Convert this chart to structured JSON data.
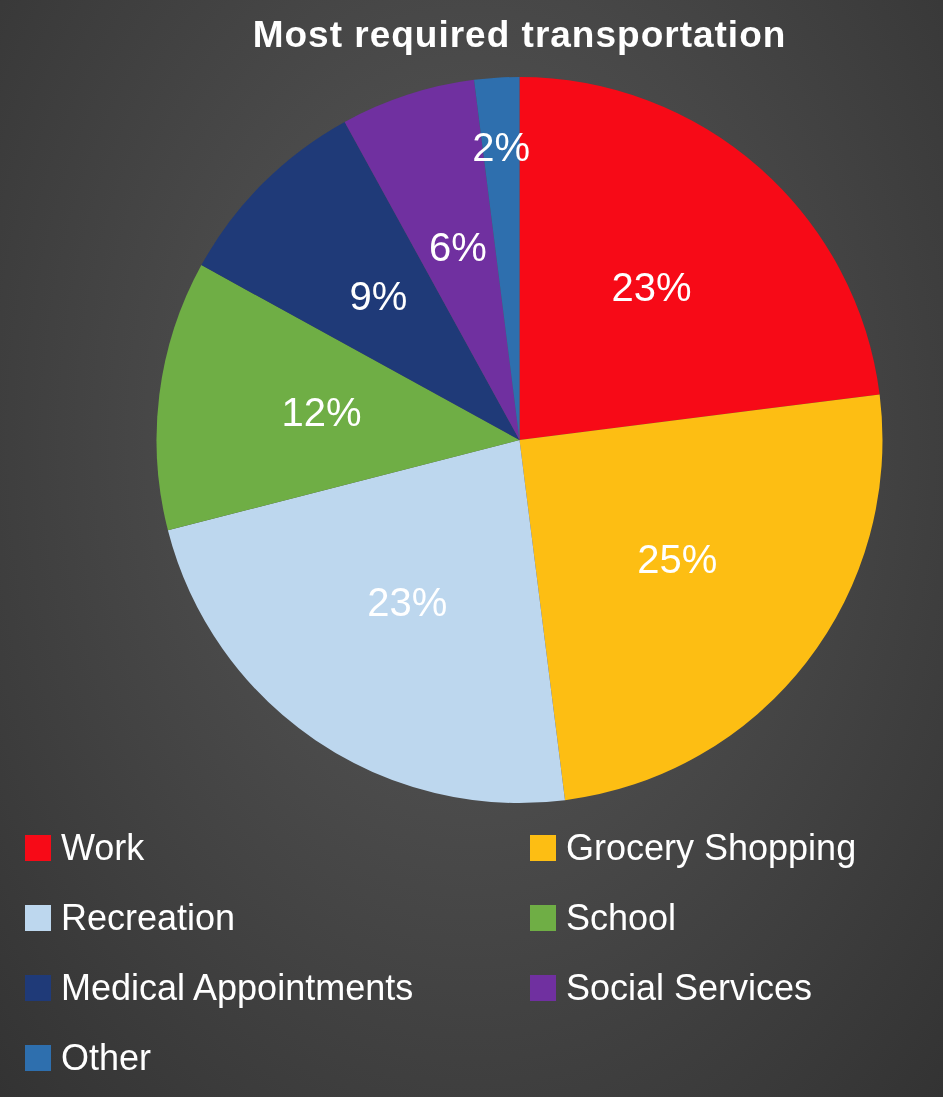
{
  "chart_data": {
    "type": "pie",
    "title": "Most required transportation",
    "categories": [
      "Work",
      "Grocery Shopping",
      "Recreation",
      "School",
      "Medical Appointments",
      "Social Services",
      "Other"
    ],
    "values": [
      23,
      25,
      23,
      12,
      9,
      6,
      2
    ],
    "colors": [
      "#f70a17",
      "#fdbe13",
      "#bdd7ee",
      "#6fae45",
      "#1f3a78",
      "#7030a0",
      "#2e6fae"
    ],
    "value_labels": [
      "23%",
      "25%",
      "23%",
      "12%",
      "9%",
      "6%",
      "2%"
    ],
    "legend": "bottom"
  }
}
